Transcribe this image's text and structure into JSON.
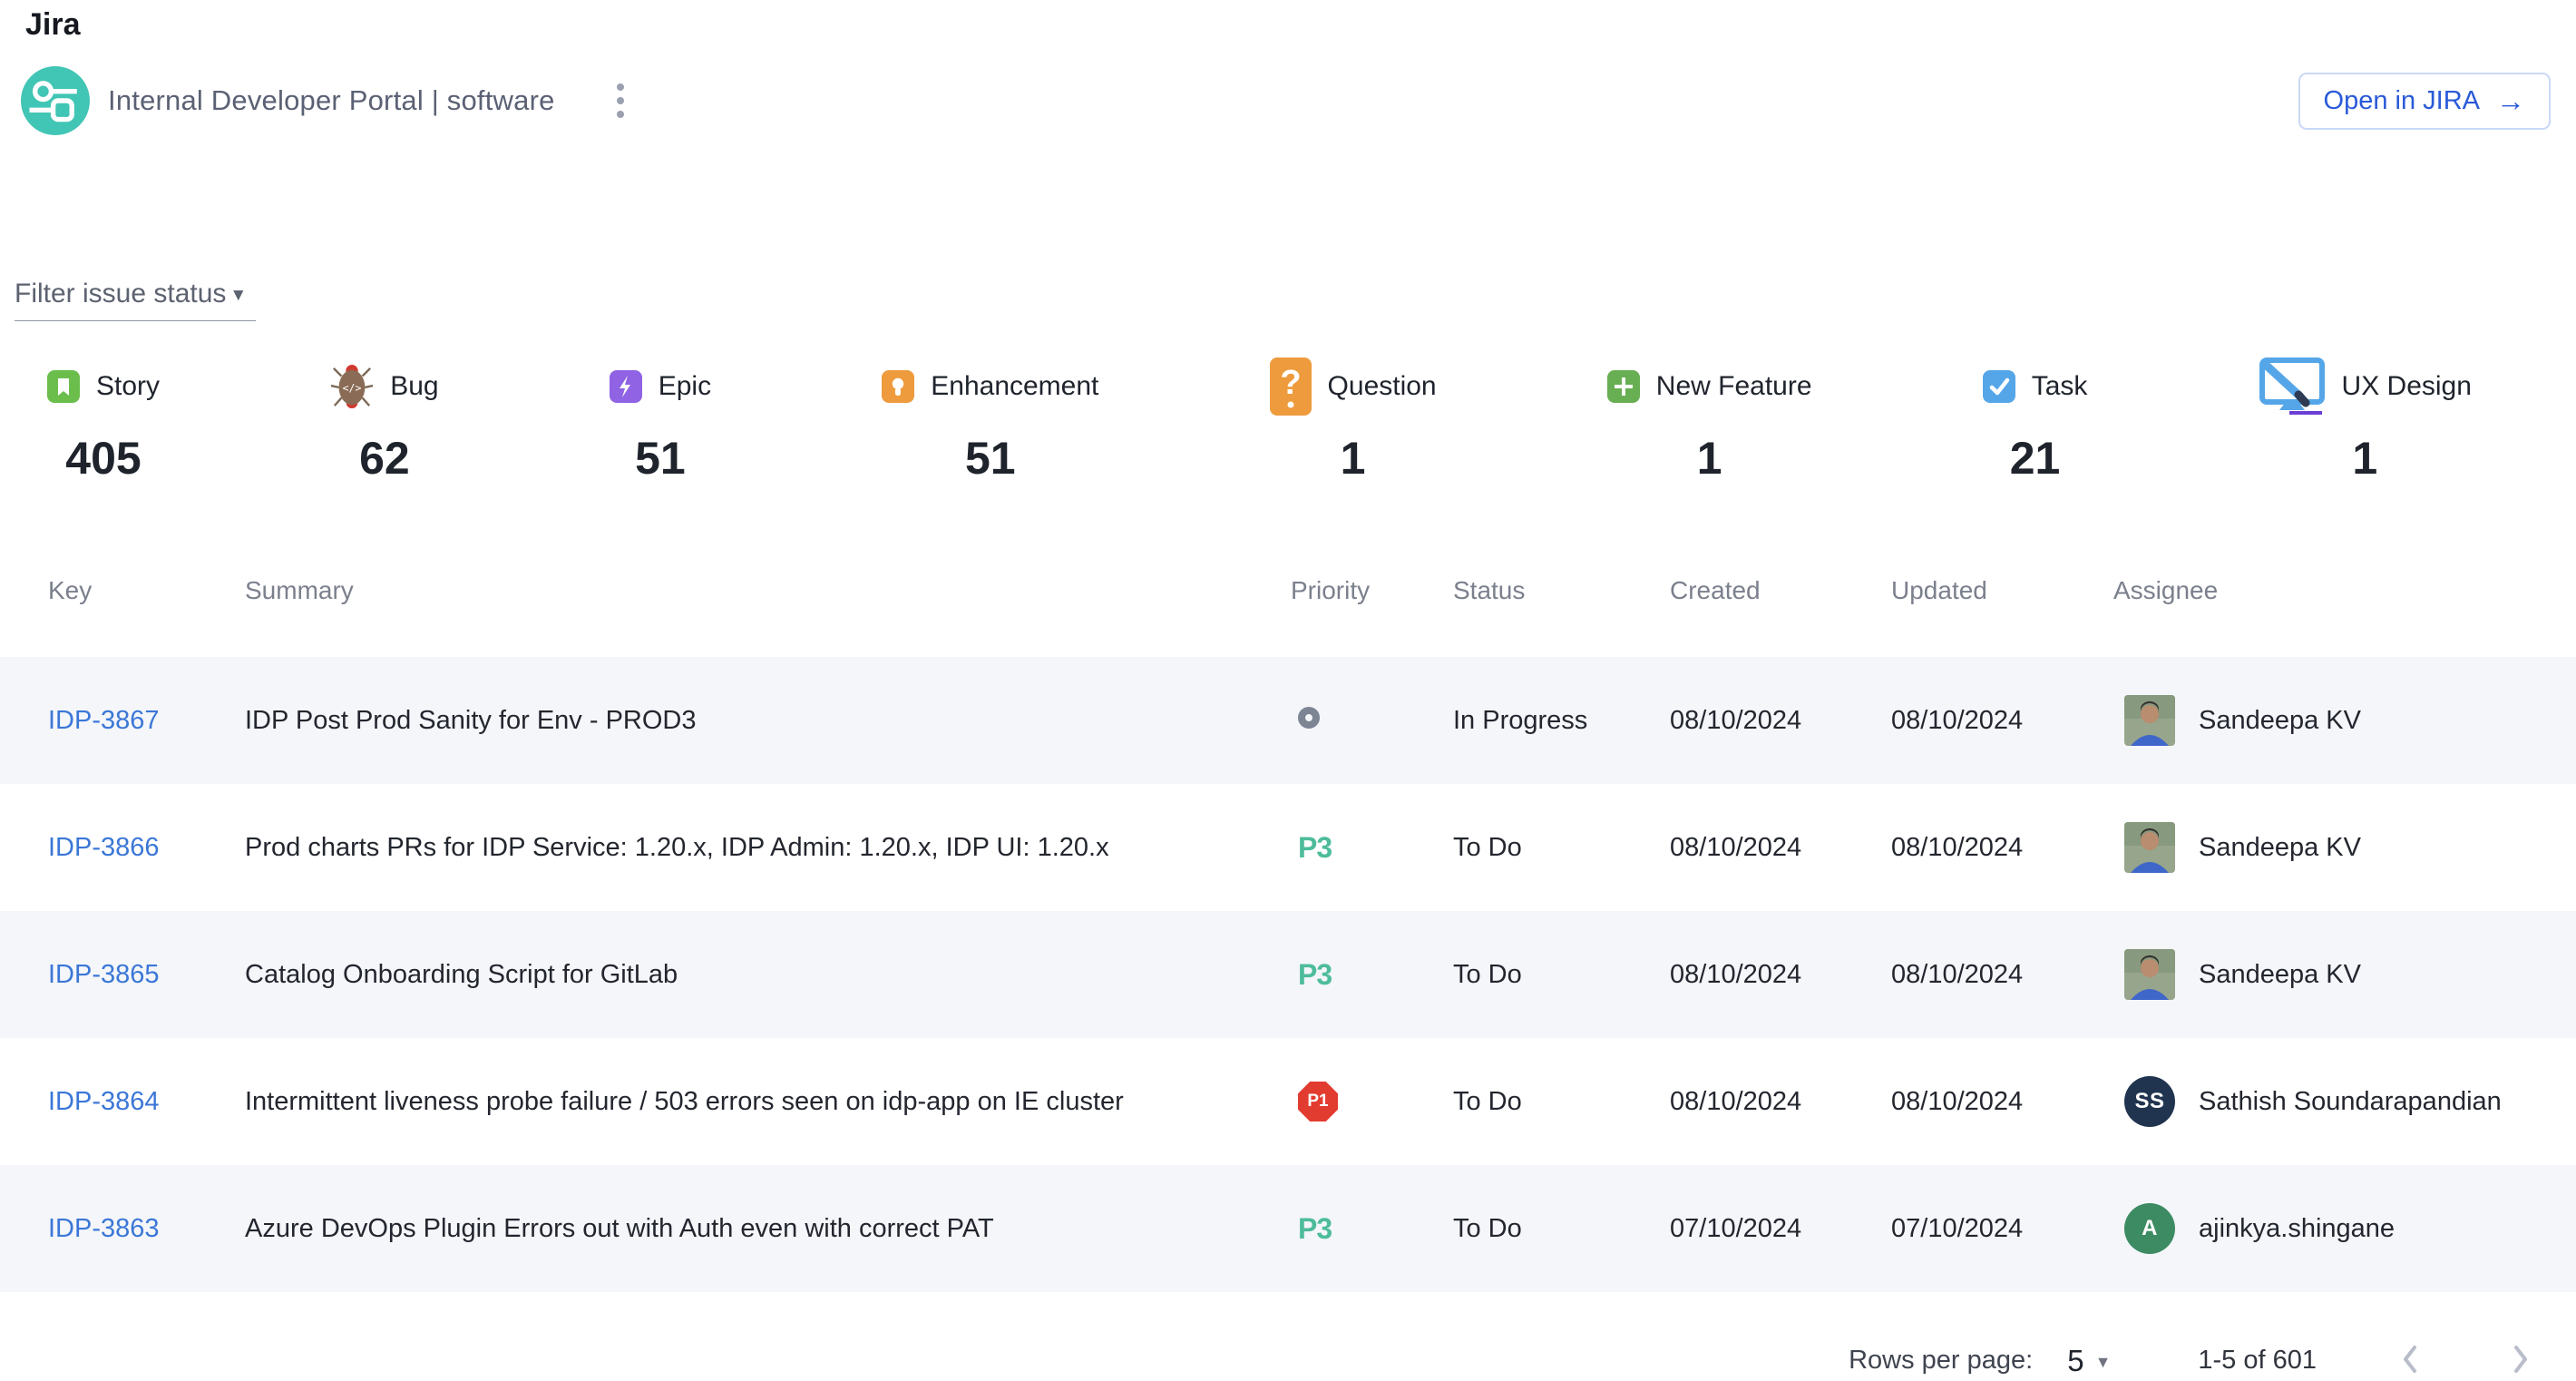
{
  "header": {
    "title": "Jira",
    "entity_name": "Internal Developer Portal | software",
    "open_in_jira_label": "Open in JIRA",
    "open_arrow": "→",
    "logo_color": "#41c5b5",
    "link_color": "#2a5ad8"
  },
  "filter": {
    "label": "Filter issue status"
  },
  "counters": [
    {
      "label": "Story",
      "count": 405,
      "icon": "story-icon",
      "color": "#6cbe4c"
    },
    {
      "label": "Bug",
      "count": 62,
      "icon": "bug-icon",
      "color": "#8a6b55"
    },
    {
      "label": "Epic",
      "count": 51,
      "icon": "epic-icon",
      "color": "#8f63e3"
    },
    {
      "label": "Enhancement",
      "count": 51,
      "icon": "enhancement-icon",
      "color": "#ee9b3d"
    },
    {
      "label": "Question",
      "count": 1,
      "icon": "question-icon",
      "color": "#ee9b3d"
    },
    {
      "label": "New Feature",
      "count": 1,
      "icon": "new-feature-icon",
      "color": "#68ae53"
    },
    {
      "label": "Task",
      "count": 21,
      "icon": "task-icon",
      "color": "#55a6e8"
    },
    {
      "label": "UX Design",
      "count": 1,
      "icon": "ux-design-icon",
      "color": "#55a6e8"
    }
  ],
  "table": {
    "columns": [
      "Key",
      "Summary",
      "Priority",
      "Status",
      "Created",
      "Updated",
      "Assignee"
    ],
    "rows": [
      {
        "key": "IDP-3867",
        "summary": "IDP Post Prod Sanity for Env - PROD3",
        "priority": "",
        "priority_type": "none",
        "status": "In Progress",
        "created": "08/10/2024",
        "updated": "08/10/2024",
        "assignee": "Sandeepa KV",
        "avatar_type": "photo",
        "avatar_initials": "",
        "avatar_color": ""
      },
      {
        "key": "IDP-3866",
        "summary": "Prod charts PRs for IDP Service: 1.20.x, IDP Admin: 1.20.x, IDP UI: 1.20.x",
        "priority": "P3",
        "priority_type": "text",
        "status": "To Do",
        "created": "08/10/2024",
        "updated": "08/10/2024",
        "assignee": "Sandeepa KV",
        "avatar_type": "photo",
        "avatar_initials": "",
        "avatar_color": ""
      },
      {
        "key": "IDP-3865",
        "summary": "Catalog Onboarding Script for GitLab",
        "priority": "P3",
        "priority_type": "text",
        "status": "To Do",
        "created": "08/10/2024",
        "updated": "08/10/2024",
        "assignee": "Sandeepa KV",
        "avatar_type": "photo",
        "avatar_initials": "",
        "avatar_color": ""
      },
      {
        "key": "IDP-3864",
        "summary": "Intermittent liveness probe failure / 503 errors seen on idp-app on IE cluster",
        "priority": "P1",
        "priority_type": "badge",
        "status": "To Do",
        "created": "08/10/2024",
        "updated": "08/10/2024",
        "assignee": "Sathish Soundarapandian",
        "avatar_type": "initials",
        "avatar_initials": "SS",
        "avatar_color": "#20344f"
      },
      {
        "key": "IDP-3863",
        "summary": "Azure DevOps Plugin Errors out with Auth even with correct PAT",
        "priority": "P3",
        "priority_type": "text",
        "status": "To Do",
        "created": "07/10/2024",
        "updated": "07/10/2024",
        "assignee": "ajinkya.shingane",
        "avatar_type": "initials",
        "avatar_initials": "A",
        "avatar_color": "#3d8b62"
      }
    ],
    "priority_colors": {
      "p3": "#4ebc9b",
      "p1": "#e23b30",
      "none_ring": "#7d8494"
    },
    "row_alt_background": "#f4f6fa"
  },
  "pagination": {
    "rows_per_page_label": "Rows per page:",
    "rows_per_page": "5",
    "range_label": "1-5 of 601"
  }
}
